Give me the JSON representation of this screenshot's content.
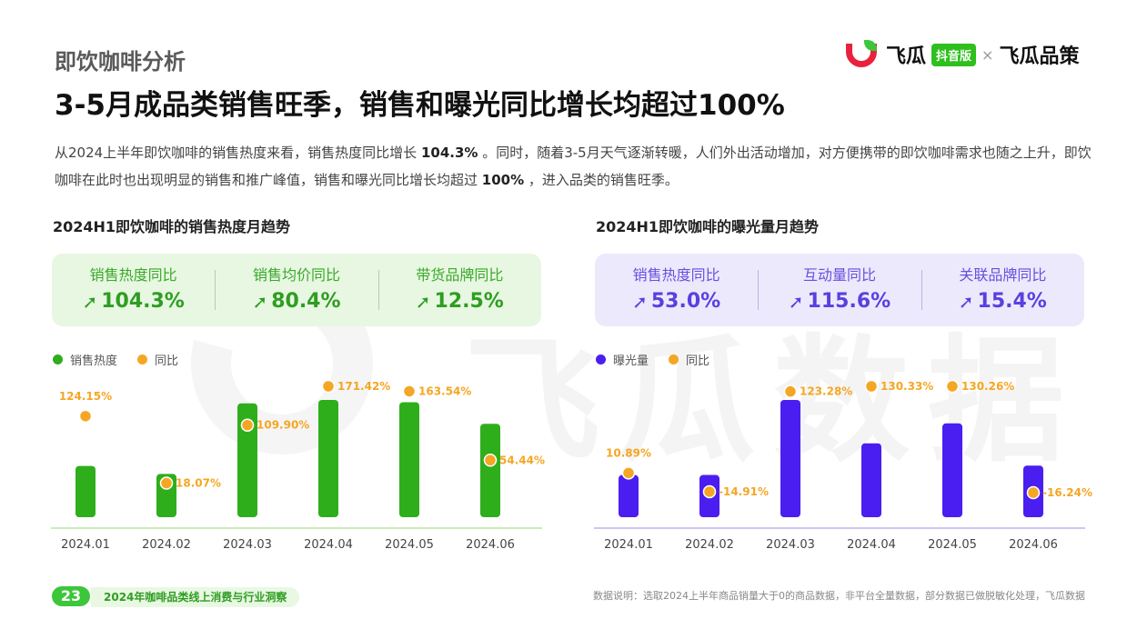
{
  "watermark": "飞瓜数据",
  "section_title": "即饮咖啡分析",
  "logo": {
    "brand1": "飞瓜",
    "badge": "抖音版",
    "times": "×",
    "brand2": "飞瓜品策"
  },
  "headline": "3-5月成品类销售旺季，销售和曝光同比增长均超过100%",
  "description": {
    "p1": "从2024上半年即饮咖啡的销售热度来看，销售热度同比增长 ",
    "b1": "104.3%",
    "p2": " 。同时，随着3-5月天气逐渐转暖，人们外出活动增加，对方便携带的即饮咖啡需求也随之上升，即饮咖啡在此时也出现明显的销售和推广峰值，销售和曝光同比增长均超过 ",
    "b2": "100%",
    "p3": " ，进入品类的销售旺季。"
  },
  "left": {
    "title": "2024H1即饮咖啡的销售热度月趋势",
    "kpis": [
      {
        "label": "销售热度同比",
        "value": "104.3%"
      },
      {
        "label": "销售均价同比",
        "value": "80.4%"
      },
      {
        "label": "带货品牌同比",
        "value": "12.5%"
      }
    ],
    "legend": [
      "销售热度",
      "同比"
    ],
    "colors": {
      "bar": "#2fae1c",
      "dot": "#f5a623",
      "axis": "#c9ecb8",
      "label": "#f5a623"
    }
  },
  "right": {
    "title": "2024H1即饮咖啡的曝光量月趋势",
    "kpis": [
      {
        "label": "销售热度同比",
        "value": "53.0%"
      },
      {
        "label": "互动量同比",
        "value": "115.6%"
      },
      {
        "label": "关联品牌同比",
        "value": "15.4%"
      }
    ],
    "legend": [
      "曝光量",
      "同比"
    ],
    "colors": {
      "bar": "#4a1ef0",
      "dot": "#f5a623",
      "axis": "#cfc6f5",
      "label": "#f5a623"
    }
  },
  "chart_data": [
    {
      "type": "bar",
      "title": "2024H1即饮咖啡的销售热度月趋势",
      "categories": [
        "2024.01",
        "2024.02",
        "2024.03",
        "2024.04",
        "2024.05",
        "2024.06"
      ],
      "series": [
        {
          "name": "销售热度",
          "values": [
            45,
            38,
            100,
            103,
            101,
            82
          ]
        },
        {
          "name": "同比",
          "values": [
            124.15,
            18.07,
            109.9,
            171.42,
            163.54,
            54.44
          ],
          "value_labels": [
            "124.15%",
            "18.07%",
            "109.90%",
            "171.42%",
            "163.54%",
            "54.44%"
          ]
        }
      ]
    },
    {
      "type": "bar",
      "title": "2024H1即饮咖啡的曝光量月趋势",
      "categories": [
        "2024.01",
        "2024.02",
        "2024.03",
        "2024.04",
        "2024.05",
        "2024.06"
      ],
      "series": [
        {
          "name": "曝光量",
          "values": [
            36,
            36,
            100,
            63,
            80,
            44
          ]
        },
        {
          "name": "同比",
          "values": [
            10.89,
            -14.91,
            123.28,
            130.33,
            130.26,
            -16.24
          ],
          "value_labels": [
            "10.89%",
            "-14.91%",
            "123.28%",
            "130.33%",
            "130.26%",
            "-16.24%"
          ]
        }
      ]
    }
  ],
  "footer": {
    "page_number": "23",
    "report_title": "2024年咖啡品类线上消费与行业洞察",
    "note": "数据说明：选取2024上半年商品销量大于0的商品数据，非平台全量数据，部分数据已做脱敏化处理，飞瓜数据"
  }
}
